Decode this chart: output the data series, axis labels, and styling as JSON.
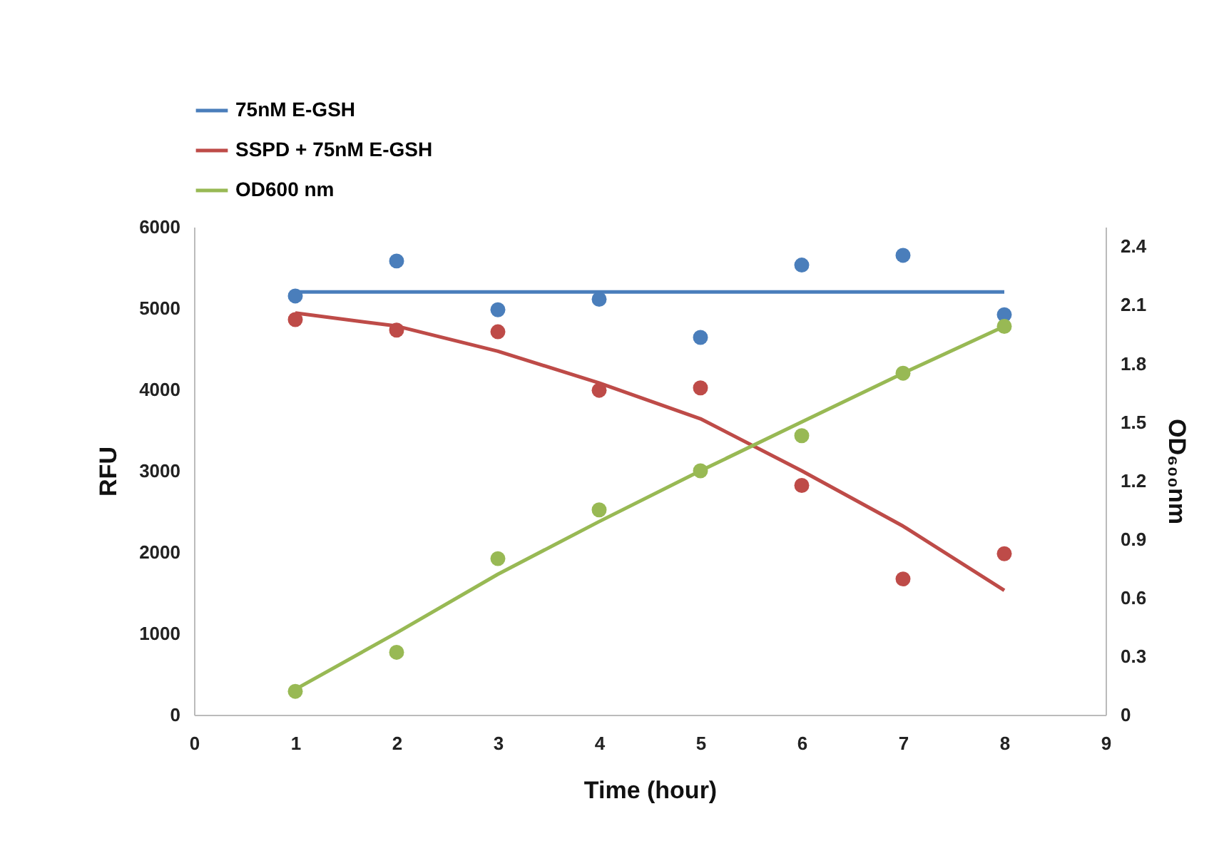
{
  "chart_data": {
    "type": "line",
    "xlabel": "Time (hour)",
    "ylabel": "RFU",
    "y2label": "OD₆₀₀nm",
    "xlim": [
      0,
      9
    ],
    "xticks": [
      0,
      1,
      2,
      3,
      4,
      5,
      6,
      7,
      8,
      9
    ],
    "ylim": [
      0,
      6000
    ],
    "yticks": [
      0,
      1000,
      2000,
      3000,
      4000,
      5000,
      6000
    ],
    "y2lim": [
      0,
      2.5
    ],
    "y2ticks": [
      0,
      0.3,
      0.6,
      0.9,
      1.2,
      1.5,
      1.8,
      2.1,
      2.4
    ],
    "grid": false,
    "legend": "top left",
    "line_style": "solid",
    "series": [
      {
        "name": "75nM E-GSH",
        "type": "line",
        "marker": "none",
        "color": "#4a7ebb",
        "x": [
          1,
          8
        ],
        "values": [
          5200,
          5200
        ]
      },
      {
        "name": "SSPD + 75nM E-GSH",
        "type": "line",
        "marker": "none",
        "color": "#be4b48",
        "x": [
          1,
          2,
          3,
          4,
          5,
          6,
          7,
          8
        ],
        "values": [
          4940,
          4780,
          4470,
          4080,
          3640,
          3000,
          2320,
          1530
        ]
      },
      {
        "name": "OD600 nm",
        "type": "line",
        "marker": "none",
        "axis": "y2",
        "color": "#98b954",
        "x": [
          1,
          2,
          3,
          4,
          5,
          6,
          7,
          8
        ],
        "values": [
          0.13,
          0.42,
          0.72,
          0.99,
          1.25,
          1.5,
          1.75,
          1.99
        ]
      },
      {
        "type": "scatter",
        "marker": "circle",
        "color": "#4a7ebb",
        "x": [
          1,
          2,
          3,
          4,
          5,
          6,
          7,
          8
        ],
        "values": [
          5150,
          5580,
          4980,
          5110,
          4640,
          5530,
          5650,
          4920
        ]
      },
      {
        "type": "scatter",
        "marker": "circle",
        "color": "#be4b48",
        "x": [
          1,
          2,
          3,
          4,
          5,
          6,
          7,
          8
        ],
        "values": [
          4860,
          4730,
          4710,
          3990,
          4020,
          2820,
          1670,
          1980
        ]
      },
      {
        "type": "scatter",
        "marker": "circle",
        "axis": "y2",
        "color": "#98b954",
        "x": [
          1,
          2,
          3,
          4,
          5,
          6,
          7,
          8
        ],
        "values": [
          0.12,
          0.32,
          0.8,
          1.05,
          1.25,
          1.43,
          1.75,
          1.99
        ]
      }
    ]
  }
}
